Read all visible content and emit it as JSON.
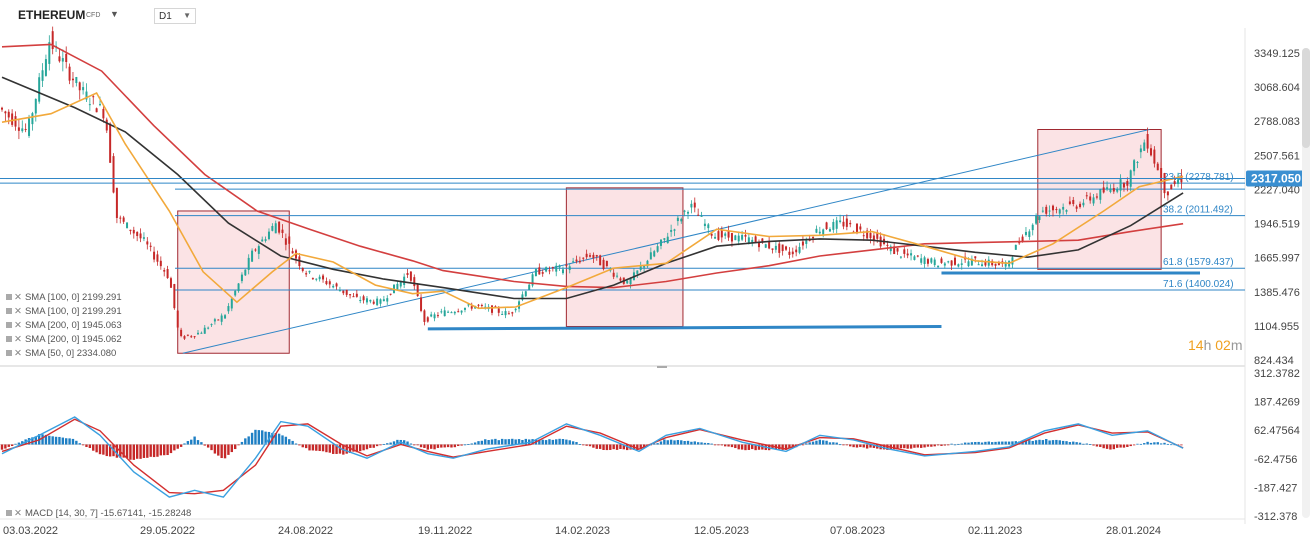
{
  "header": {
    "symbol": "ETHEREUM",
    "instrument_type": "CFD",
    "timeframe": "D1"
  },
  "timer": {
    "hours": "14",
    "h_unit": "h",
    "minutes": "02",
    "m_unit": "m"
  },
  "legend": [
    "SMA [100, 0] 2199.291",
    "SMA [100, 0] 2199.291",
    "SMA [200, 0] 1945.063",
    "SMA [200, 0] 1945.062",
    "SMA [50, 0] 2334.080"
  ],
  "macd_legend": "MACD [14, 30, 7] -15.67141, -15.28248",
  "colors": {
    "up": "#26a69a",
    "down": "#c62828",
    "sma50": "#f2a93b",
    "sma100": "#333333",
    "sma200": "#d33f3f",
    "fib": "#2f86c6",
    "box_fill": "#fbe3e5",
    "box_stroke": "#a02830",
    "macd_pos": "#1e7fc4",
    "macd_neg": "#c62828",
    "last_price_bg": "#3a8fd1"
  },
  "chart_data": [
    {
      "type": "line",
      "subtype": "candlestick",
      "title": "ETHEREUM CFD D1",
      "price_axis_ticks": [
        "3349.125",
        "3068.604",
        "2788.083",
        "2507.561",
        "2227.040",
        "1946.519",
        "1665.997",
        "1385.476",
        "1104.955",
        "824.434"
      ],
      "ylim": [
        824.434,
        3500
      ],
      "x_tick_labels": [
        "03.03.2022",
        "29.05.2022",
        "24.08.2022",
        "19.11.2022",
        "14.02.2023",
        "12.05.2023",
        "07.08.2023",
        "02.11.2023",
        "28.01.2024"
      ],
      "x_range": [
        "2022-03-03",
        "2024-02-10"
      ],
      "last_price": "2317.050",
      "fibonacci": [
        {
          "label": "23.6 (2278.781)",
          "value": 2278.781
        },
        {
          "label": "38.2 (2011.492)",
          "value": 2011.492
        },
        {
          "label": "61.8 (1579.437)",
          "value": 1579.437
        },
        {
          "label": "71.6 (1400.024)",
          "value": 1400.024
        }
      ],
      "price_path": [
        [
          "2022-03-03",
          2900
        ],
        [
          "2022-03-20",
          2700
        ],
        [
          "2022-04-02",
          3450
        ],
        [
          "2022-04-20",
          3050
        ],
        [
          "2022-05-05",
          2850
        ],
        [
          "2022-05-12",
          2000
        ],
        [
          "2022-05-28",
          1800
        ],
        [
          "2022-06-12",
          1500
        ],
        [
          "2022-06-18",
          1000
        ],
        [
          "2022-06-30",
          1050
        ],
        [
          "2022-07-15",
          1200
        ],
        [
          "2022-07-31",
          1700
        ],
        [
          "2022-08-14",
          1950
        ],
        [
          "2022-08-31",
          1550
        ],
        [
          "2022-09-15",
          1450
        ],
        [
          "2022-09-30",
          1330
        ],
        [
          "2022-10-15",
          1300
        ],
        [
          "2022-11-01",
          1550
        ],
        [
          "2022-11-10",
          1150
        ],
        [
          "2022-11-19",
          1210
        ],
        [
          "2022-12-10",
          1270
        ],
        [
          "2022-12-31",
          1200
        ],
        [
          "2023-01-15",
          1550
        ],
        [
          "2023-01-31",
          1580
        ],
        [
          "2023-02-16",
          1690
        ],
        [
          "2023-03-10",
          1450
        ],
        [
          "2023-03-31",
          1800
        ],
        [
          "2023-04-16",
          2100
        ],
        [
          "2023-04-30",
          1850
        ],
        [
          "2023-05-20",
          1820
        ],
        [
          "2023-06-15",
          1700
        ],
        [
          "2023-07-01",
          1900
        ],
        [
          "2023-07-15",
          1950
        ],
        [
          "2023-08-01",
          1850
        ],
        [
          "2023-08-17",
          1700
        ],
        [
          "2023-09-10",
          1620
        ],
        [
          "2023-10-01",
          1640
        ],
        [
          "2023-10-20",
          1600
        ],
        [
          "2023-10-28",
          1800
        ],
        [
          "2023-11-10",
          2050
        ],
        [
          "2023-12-01",
          2100
        ],
        [
          "2023-12-31",
          2300
        ],
        [
          "2024-01-11",
          2650
        ],
        [
          "2024-01-23",
          2200
        ],
        [
          "2024-01-31",
          2317
        ]
      ],
      "sma50": [
        [
          "2022-03-03",
          2780
        ],
        [
          "2022-04-01",
          2850
        ],
        [
          "2022-04-28",
          3020
        ],
        [
          "2022-05-15",
          2600
        ],
        [
          "2022-06-10",
          2050
        ],
        [
          "2022-06-30",
          1550
        ],
        [
          "2022-07-20",
          1300
        ],
        [
          "2022-08-10",
          1550
        ],
        [
          "2022-08-24",
          1700
        ],
        [
          "2022-09-15",
          1630
        ],
        [
          "2022-10-10",
          1440
        ],
        [
          "2022-11-01",
          1370
        ],
        [
          "2022-11-19",
          1390
        ],
        [
          "2022-12-10",
          1250
        ],
        [
          "2023-01-01",
          1260
        ],
        [
          "2023-01-31",
          1420
        ],
        [
          "2023-02-28",
          1580
        ],
        [
          "2023-03-31",
          1620
        ],
        [
          "2023-04-30",
          1900
        ],
        [
          "2023-05-31",
          1840
        ],
        [
          "2023-06-30",
          1850
        ],
        [
          "2023-07-31",
          1880
        ],
        [
          "2023-08-31",
          1760
        ],
        [
          "2023-09-30",
          1640
        ],
        [
          "2023-10-20",
          1620
        ],
        [
          "2023-11-15",
          1780
        ],
        [
          "2023-12-15",
          2050
        ],
        [
          "2024-01-05",
          2250
        ],
        [
          "2024-01-31",
          2334
        ]
      ],
      "sma100": [
        [
          "2022-03-03",
          3150
        ],
        [
          "2022-04-15",
          2900
        ],
        [
          "2022-05-15",
          2700
        ],
        [
          "2022-06-15",
          2350
        ],
        [
          "2022-07-15",
          1950
        ],
        [
          "2022-08-15",
          1680
        ],
        [
          "2022-09-15",
          1570
        ],
        [
          "2022-10-15",
          1490
        ],
        [
          "2022-11-19",
          1420
        ],
        [
          "2022-12-31",
          1330
        ],
        [
          "2023-01-31",
          1330
        ],
        [
          "2023-02-28",
          1440
        ],
        [
          "2023-03-31",
          1620
        ],
        [
          "2023-04-30",
          1760
        ],
        [
          "2023-05-31",
          1800
        ],
        [
          "2023-06-30",
          1820
        ],
        [
          "2023-07-31",
          1810
        ],
        [
          "2023-08-31",
          1760
        ],
        [
          "2023-09-30",
          1710
        ],
        [
          "2023-10-31",
          1670
        ],
        [
          "2023-11-30",
          1730
        ],
        [
          "2023-12-31",
          1930
        ],
        [
          "2024-01-31",
          2199
        ]
      ],
      "sma200": [
        [
          "2022-03-03",
          3400
        ],
        [
          "2022-04-01",
          3420
        ],
        [
          "2022-05-01",
          3200
        ],
        [
          "2022-06-01",
          2750
        ],
        [
          "2022-07-01",
          2350
        ],
        [
          "2022-08-01",
          2050
        ],
        [
          "2022-09-01",
          1900
        ],
        [
          "2022-10-01",
          1760
        ],
        [
          "2022-11-01",
          1640
        ],
        [
          "2022-11-19",
          1560
        ],
        [
          "2022-12-31",
          1470
        ],
        [
          "2023-01-31",
          1430
        ],
        [
          "2023-02-28",
          1420
        ],
        [
          "2023-03-31",
          1470
        ],
        [
          "2023-04-30",
          1540
        ],
        [
          "2023-05-31",
          1600
        ],
        [
          "2023-06-30",
          1680
        ],
        [
          "2023-07-31",
          1730
        ],
        [
          "2023-08-31",
          1780
        ],
        [
          "2023-09-30",
          1790
        ],
        [
          "2023-10-31",
          1800
        ],
        [
          "2023-11-30",
          1810
        ],
        [
          "2023-12-31",
          1880
        ],
        [
          "2024-01-31",
          1945
        ]
      ],
      "trendlines": [
        {
          "from": [
            "2022-06-18",
            880
          ],
          "to": [
            "2024-01-11",
            2720
          ],
          "color": "#2f86c6"
        },
        {
          "from": [
            "2022-11-10",
            1080
          ],
          "to": [
            "2023-09-10",
            1100
          ],
          "color": "#2f86c6",
          "width": 3
        },
        {
          "from": [
            "2023-09-10",
            1540
          ],
          "to": [
            "2024-02-10",
            1540
          ],
          "color": "#2f86c6",
          "width": 3
        }
      ],
      "boxes": [
        {
          "from": [
            "2022-06-15",
            880
          ],
          "to": [
            "2022-08-20",
            2050
          ]
        },
        {
          "from": [
            "2023-01-31",
            1100
          ],
          "to": [
            "2023-04-10",
            2240
          ]
        },
        {
          "from": [
            "2023-11-06",
            1570
          ],
          "to": [
            "2024-01-18",
            2720
          ]
        }
      ]
    },
    {
      "type": "line",
      "subtype": "macd",
      "title": "MACD [14, 30, 7]",
      "y_tick_labels": [
        "312.3782",
        "187.4269",
        "62.47564",
        "-62.4756",
        "-187.427",
        "-312.378"
      ],
      "ylim": [
        -312.378,
        312.3782
      ],
      "x_range": [
        "2022-03-03",
        "2024-02-10"
      ],
      "macd": [
        [
          "2022-03-03",
          -40
        ],
        [
          "2022-03-25",
          40
        ],
        [
          "2022-04-15",
          120
        ],
        [
          "2022-04-30",
          40
        ],
        [
          "2022-05-20",
          -120
        ],
        [
          "2022-06-10",
          -230
        ],
        [
          "2022-06-25",
          -200
        ],
        [
          "2022-07-12",
          -230
        ],
        [
          "2022-07-31",
          -60
        ],
        [
          "2022-08-15",
          100
        ],
        [
          "2022-08-31",
          80
        ],
        [
          "2022-09-20",
          -20
        ],
        [
          "2022-10-05",
          -60
        ],
        [
          "2022-10-25",
          10
        ],
        [
          "2022-11-10",
          -40
        ],
        [
          "2022-11-25",
          -60
        ],
        [
          "2022-12-15",
          -20
        ],
        [
          "2023-01-10",
          10
        ],
        [
          "2023-01-31",
          90
        ],
        [
          "2023-02-20",
          40
        ],
        [
          "2023-03-15",
          -30
        ],
        [
          "2023-03-31",
          40
        ],
        [
          "2023-04-20",
          70
        ],
        [
          "2023-05-15",
          10
        ],
        [
          "2023-06-10",
          -30
        ],
        [
          "2023-06-30",
          40
        ],
        [
          "2023-07-20",
          20
        ],
        [
          "2023-08-10",
          -20
        ],
        [
          "2023-08-31",
          -50
        ],
        [
          "2023-09-30",
          -30
        ],
        [
          "2023-10-20",
          -10
        ],
        [
          "2023-11-10",
          60
        ],
        [
          "2023-11-30",
          90
        ],
        [
          "2023-12-20",
          40
        ],
        [
          "2024-01-10",
          60
        ],
        [
          "2024-01-31",
          -16
        ]
      ],
      "signal": [
        [
          "2022-03-03",
          -30
        ],
        [
          "2022-03-25",
          20
        ],
        [
          "2022-04-15",
          110
        ],
        [
          "2022-04-30",
          60
        ],
        [
          "2022-05-20",
          -90
        ],
        [
          "2022-06-10",
          -210
        ],
        [
          "2022-06-25",
          -215
        ],
        [
          "2022-07-12",
          -200
        ],
        [
          "2022-07-31",
          -90
        ],
        [
          "2022-08-15",
          80
        ],
        [
          "2022-08-31",
          90
        ],
        [
          "2022-09-20",
          0
        ],
        [
          "2022-10-05",
          -50
        ],
        [
          "2022-10-25",
          0
        ],
        [
          "2022-11-10",
          -30
        ],
        [
          "2022-11-25",
          -55
        ],
        [
          "2022-12-15",
          -30
        ],
        [
          "2023-01-10",
          0
        ],
        [
          "2023-01-31",
          80
        ],
        [
          "2023-02-20",
          50
        ],
        [
          "2023-03-15",
          -20
        ],
        [
          "2023-03-31",
          30
        ],
        [
          "2023-04-20",
          65
        ],
        [
          "2023-05-15",
          20
        ],
        [
          "2023-06-10",
          -20
        ],
        [
          "2023-06-30",
          30
        ],
        [
          "2023-07-20",
          25
        ],
        [
          "2023-08-10",
          -10
        ],
        [
          "2023-08-31",
          -45
        ],
        [
          "2023-09-30",
          -35
        ],
        [
          "2023-10-20",
          -15
        ],
        [
          "2023-11-10",
          50
        ],
        [
          "2023-11-30",
          85
        ],
        [
          "2023-12-20",
          50
        ],
        [
          "2024-01-10",
          55
        ],
        [
          "2024-01-31",
          -15
        ]
      ]
    }
  ]
}
